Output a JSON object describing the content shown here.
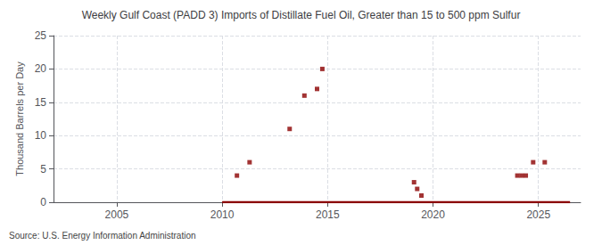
{
  "chart_data": {
    "type": "scatter",
    "title": "Weekly Gulf Coast (PADD 3) Imports of Distillate Fuel Oil, Greater than 15 to 500 ppm Sulfur",
    "ylabel": "Thousand Barrels per Day",
    "source": "Source: U.S. Energy Information Administration",
    "xlim": [
      2002,
      2027
    ],
    "xticks": [
      2005,
      2010,
      2015,
      2020,
      2025
    ],
    "ylim": [
      0,
      25
    ],
    "yticks": [
      0,
      5,
      10,
      15,
      20,
      25
    ],
    "grid": true,
    "series": [
      {
        "type": "scatter",
        "marker": "square",
        "color": "#8b0000",
        "x": [
          2010.7,
          2011.3,
          2013.2,
          2013.9,
          2014.5,
          2014.75,
          2019.1,
          2019.25,
          2019.45,
          2024.0,
          2024.2,
          2024.4,
          2024.75,
          2025.3
        ],
        "values": [
          4,
          6,
          11,
          16,
          17,
          20,
          3,
          2,
          1,
          4,
          4,
          4,
          6,
          6
        ]
      },
      {
        "type": "line",
        "line_style": "solid",
        "color": "#8b0000",
        "x": [
          2010.0,
          2026.5
        ],
        "values": [
          0,
          0
        ]
      }
    ]
  }
}
